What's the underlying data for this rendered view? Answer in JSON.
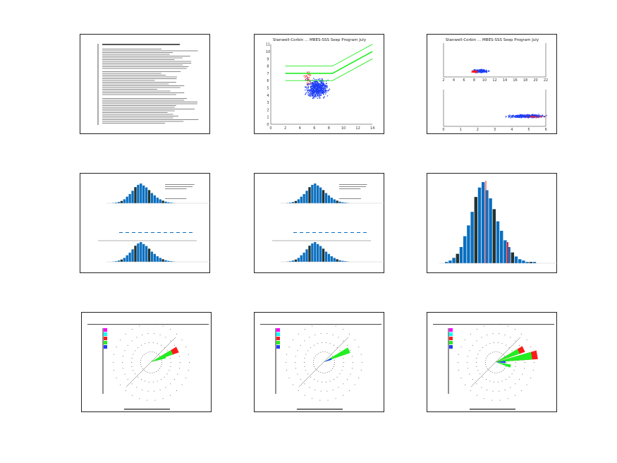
{
  "pages": [
    {
      "kind": "text-summary"
    },
    {
      "kind": "scatter",
      "title": "Stanwell-Corbin ... MBES-SSS Seep Program July",
      "yticks": [
        "0",
        "1",
        "2",
        "3",
        "4",
        "5",
        "6",
        "7",
        "8",
        "9",
        "10",
        "11"
      ],
      "xticks": [
        "0",
        "2",
        "4",
        "6",
        "8",
        "10",
        "12",
        "14"
      ]
    },
    {
      "kind": "scatter-pair",
      "title": "Stanwell-Corbin ... MBES-SSS Seep Program July",
      "xticks_top": [
        "2",
        "4",
        "6",
        "8",
        "10",
        "12",
        "14",
        "16",
        "18",
        "20",
        "22"
      ],
      "xticks_bottom": [
        "0",
        "1",
        "2",
        "3",
        "4",
        "5",
        "6"
      ]
    },
    {
      "kind": "histogram-triple"
    },
    {
      "kind": "histogram-triple"
    },
    {
      "kind": "histogram"
    },
    {
      "kind": "rose"
    },
    {
      "kind": "rose"
    },
    {
      "kind": "rose"
    }
  ],
  "colors": {
    "blue": "#1f3ff5",
    "red": "#ff1a1a",
    "green": "#22ee22",
    "bar": "#0a6fbf",
    "magenta": "#ff00ff",
    "cyan": "#00ffff"
  },
  "histogram_values": [
    1,
    2,
    4,
    7,
    12,
    20,
    28,
    38,
    49,
    56,
    60,
    54,
    48,
    40,
    31,
    24,
    17,
    12,
    8,
    5,
    3,
    2,
    1
  ]
}
